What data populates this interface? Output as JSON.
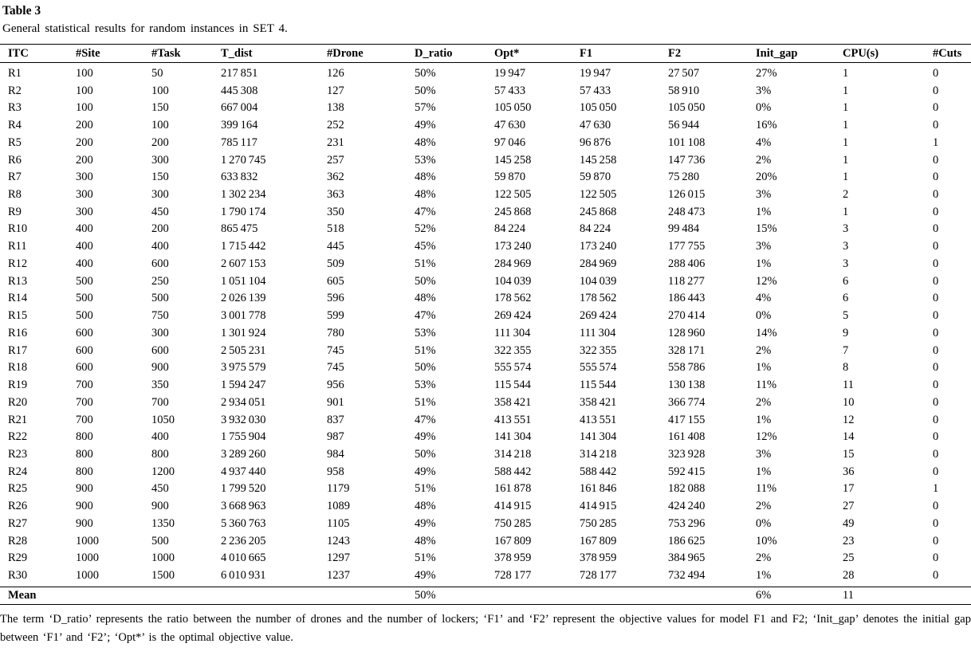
{
  "table": {
    "title": "Table 3",
    "caption": "General statistical results for random instances in SET 4.",
    "columns": [
      "ITC",
      "#Site",
      "#Task",
      "T_dist",
      "#Drone",
      "D_ratio",
      "Opt*",
      "F1",
      "F2",
      "Init_gap",
      "CPU(s)",
      "#Cuts"
    ],
    "rows": [
      [
        "R1",
        "100",
        "50",
        "217 851",
        "126",
        "50%",
        "19 947",
        "19 947",
        "27 507",
        "27%",
        "1",
        "0"
      ],
      [
        "R2",
        "100",
        "100",
        "445 308",
        "127",
        "50%",
        "57 433",
        "57 433",
        "58 910",
        "3%",
        "1",
        "0"
      ],
      [
        "R3",
        "100",
        "150",
        "667 004",
        "138",
        "57%",
        "105 050",
        "105 050",
        "105 050",
        "0%",
        "1",
        "0"
      ],
      [
        "R4",
        "200",
        "100",
        "399 164",
        "252",
        "49%",
        "47 630",
        "47 630",
        "56 944",
        "16%",
        "1",
        "0"
      ],
      [
        "R5",
        "200",
        "200",
        "785 117",
        "231",
        "48%",
        "97 046",
        "96 876",
        "101 108",
        "4%",
        "1",
        "1"
      ],
      [
        "R6",
        "200",
        "300",
        "1 270 745",
        "257",
        "53%",
        "145 258",
        "145 258",
        "147 736",
        "2%",
        "1",
        "0"
      ],
      [
        "R7",
        "300",
        "150",
        "633 832",
        "362",
        "48%",
        "59 870",
        "59 870",
        "75 280",
        "20%",
        "1",
        "0"
      ],
      [
        "R8",
        "300",
        "300",
        "1 302 234",
        "363",
        "48%",
        "122 505",
        "122 505",
        "126 015",
        "3%",
        "2",
        "0"
      ],
      [
        "R9",
        "300",
        "450",
        "1 790 174",
        "350",
        "47%",
        "245 868",
        "245 868",
        "248 473",
        "1%",
        "1",
        "0"
      ],
      [
        "R10",
        "400",
        "200",
        "865 475",
        "518",
        "52%",
        "84 224",
        "84 224",
        "99 484",
        "15%",
        "3",
        "0"
      ],
      [
        "R11",
        "400",
        "400",
        "1 715 442",
        "445",
        "45%",
        "173 240",
        "173 240",
        "177 755",
        "3%",
        "3",
        "0"
      ],
      [
        "R12",
        "400",
        "600",
        "2 607 153",
        "509",
        "51%",
        "284 969",
        "284 969",
        "288 406",
        "1%",
        "3",
        "0"
      ],
      [
        "R13",
        "500",
        "250",
        "1 051 104",
        "605",
        "50%",
        "104 039",
        "104 039",
        "118 277",
        "12%",
        "6",
        "0"
      ],
      [
        "R14",
        "500",
        "500",
        "2 026 139",
        "596",
        "48%",
        "178 562",
        "178 562",
        "186 443",
        "4%",
        "6",
        "0"
      ],
      [
        "R15",
        "500",
        "750",
        "3 001 778",
        "599",
        "47%",
        "269 424",
        "269 424",
        "270 414",
        "0%",
        "5",
        "0"
      ],
      [
        "R16",
        "600",
        "300",
        "1 301 924",
        "780",
        "53%",
        "111 304",
        "111 304",
        "128 960",
        "14%",
        "9",
        "0"
      ],
      [
        "R17",
        "600",
        "600",
        "2 505 231",
        "745",
        "51%",
        "322 355",
        "322 355",
        "328 171",
        "2%",
        "7",
        "0"
      ],
      [
        "R18",
        "600",
        "900",
        "3 975 579",
        "745",
        "50%",
        "555 574",
        "555 574",
        "558 786",
        "1%",
        "8",
        "0"
      ],
      [
        "R19",
        "700",
        "350",
        "1 594 247",
        "956",
        "53%",
        "115 544",
        "115 544",
        "130 138",
        "11%",
        "11",
        "0"
      ],
      [
        "R20",
        "700",
        "700",
        "2 934 051",
        "901",
        "51%",
        "358 421",
        "358 421",
        "366 774",
        "2%",
        "10",
        "0"
      ],
      [
        "R21",
        "700",
        "1050",
        "3 932 030",
        "837",
        "47%",
        "413 551",
        "413 551",
        "417 155",
        "1%",
        "12",
        "0"
      ],
      [
        "R22",
        "800",
        "400",
        "1 755 904",
        "987",
        "49%",
        "141 304",
        "141 304",
        "161 408",
        "12%",
        "14",
        "0"
      ],
      [
        "R23",
        "800",
        "800",
        "3 289 260",
        "984",
        "50%",
        "314 218",
        "314 218",
        "323 928",
        "3%",
        "15",
        "0"
      ],
      [
        "R24",
        "800",
        "1200",
        "4 937 440",
        "958",
        "49%",
        "588 442",
        "588 442",
        "592 415",
        "1%",
        "36",
        "0"
      ],
      [
        "R25",
        "900",
        "450",
        "1 799 520",
        "1179",
        "51%",
        "161 878",
        "161 846",
        "182 088",
        "11%",
        "17",
        "1"
      ],
      [
        "R26",
        "900",
        "900",
        "3 668 963",
        "1089",
        "48%",
        "414 915",
        "414 915",
        "424 240",
        "2%",
        "27",
        "0"
      ],
      [
        "R27",
        "900",
        "1350",
        "5 360 763",
        "1105",
        "49%",
        "750 285",
        "750 285",
        "753 296",
        "0%",
        "49",
        "0"
      ],
      [
        "R28",
        "1000",
        "500",
        "2 236 205",
        "1243",
        "48%",
        "167 809",
        "167 809",
        "186 625",
        "10%",
        "23",
        "0"
      ],
      [
        "R29",
        "1000",
        "1000",
        "4 010 665",
        "1297",
        "51%",
        "378 959",
        "378 959",
        "384 965",
        "2%",
        "25",
        "0"
      ],
      [
        "R30",
        "1000",
        "1500",
        "6 010 931",
        "1237",
        "49%",
        "728 177",
        "728 177",
        "732 494",
        "1%",
        "28",
        "0"
      ]
    ],
    "summary_row": [
      "Mean",
      "",
      "",
      "",
      "",
      "50%",
      "",
      "",
      "",
      "6%",
      "11",
      ""
    ],
    "footnote": "The term ‘D_ratio’ represents the ratio between the number of drones and the number of lockers; ‘F1’ and ‘F2’ represent the objective values for model F1 and F2; ‘Init_gap’ denotes the initial gap between ‘F1’ and ‘F2’; ‘Opt*’ is the optimal objective value."
  }
}
